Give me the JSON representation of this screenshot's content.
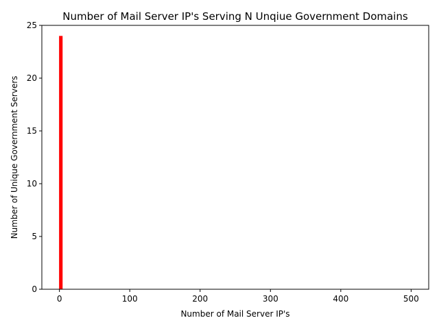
{
  "chart_data": {
    "type": "bar",
    "title": "Number of Mail Server IP's Serving N Unqiue Government Domains",
    "xlabel": "Number of Mail Server IP's",
    "ylabel": "Number of Unique Government Servers",
    "xlim": [
      -25,
      525
    ],
    "ylim": [
      0,
      25
    ],
    "xticks": [
      0,
      100,
      200,
      300,
      400,
      500
    ],
    "yticks": [
      0,
      5,
      10,
      15,
      20,
      25
    ],
    "grid": false,
    "bar_color": "#ff0000",
    "bars": [
      {
        "x": 2,
        "value": 24
      }
    ]
  }
}
